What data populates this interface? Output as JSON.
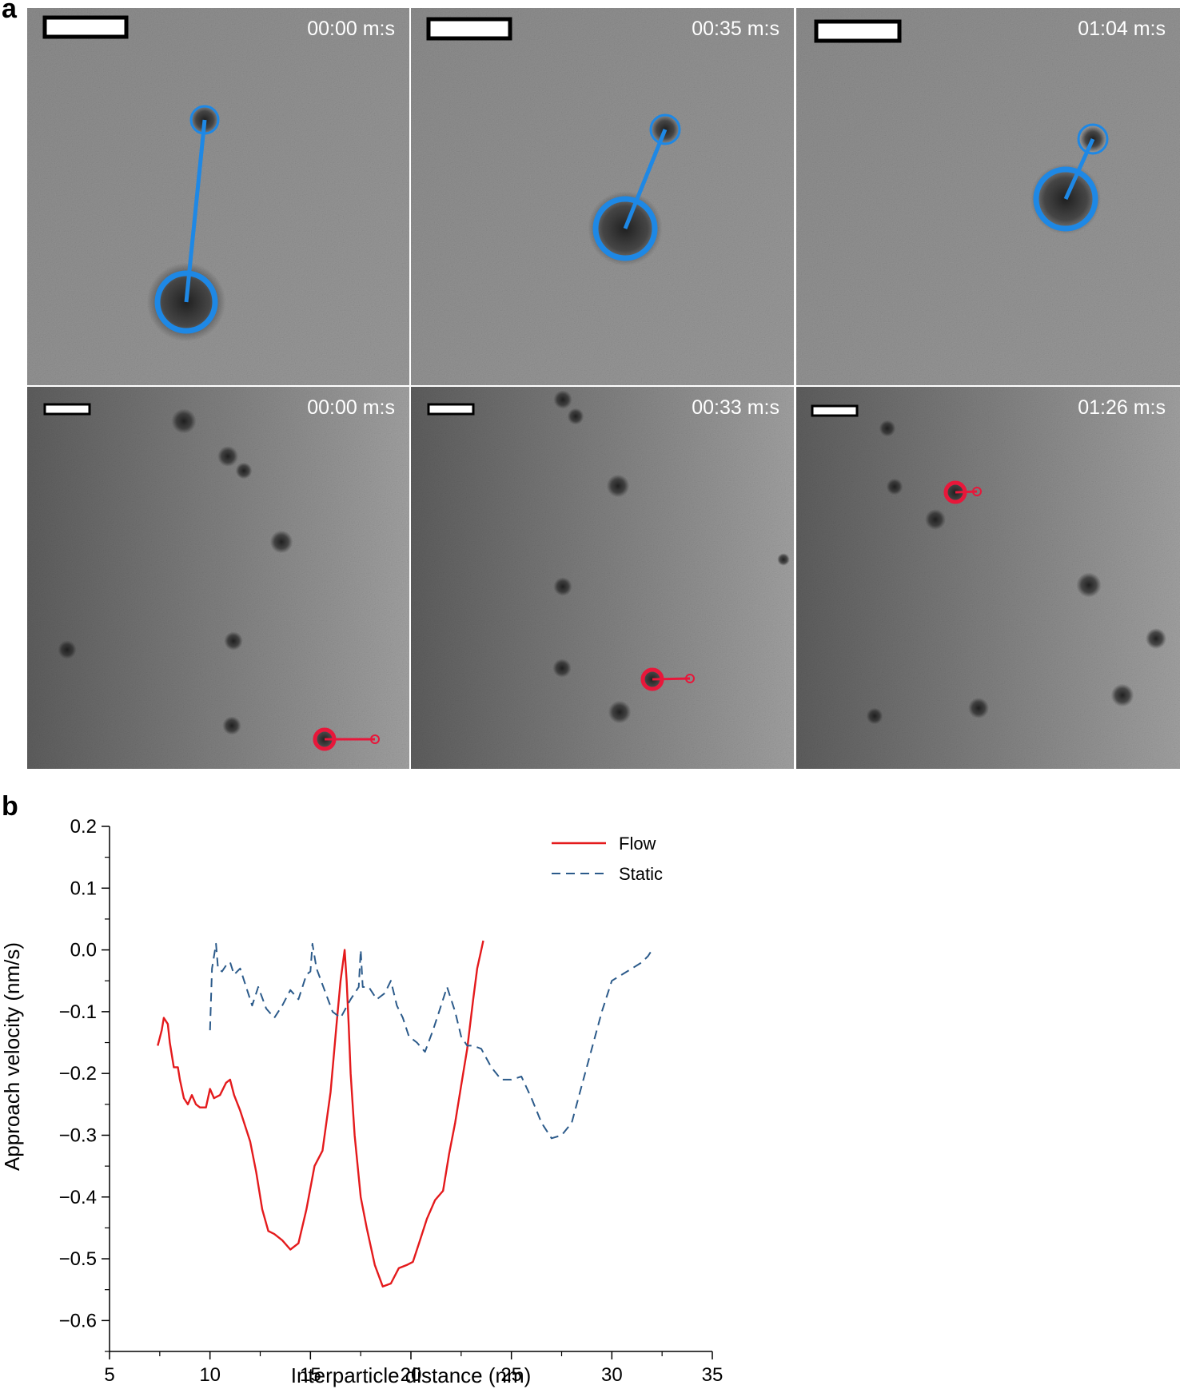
{
  "panel_a": {
    "label": "a",
    "top_row": [
      {
        "time": "00:00 m:s",
        "tracks": [
          {
            "big": [
              233,
              378
            ],
            "small": [
              256,
              150
            ]
          }
        ]
      },
      {
        "time": "00:35 m:s",
        "tracks": [
          {
            "big": [
              782,
              286
            ],
            "small": [
              832,
              162
            ]
          }
        ]
      },
      {
        "time": "01:04 m:s",
        "tracks": [
          {
            "big": [
              1333,
              249
            ],
            "small": [
              1367,
              174
            ]
          }
        ]
      }
    ],
    "bottom_row": [
      {
        "time": "00:00 m:s",
        "tracks": [
          {
            "big": [
              406,
              925
            ],
            "small": [
              469,
              925
            ]
          }
        ]
      },
      {
        "time": "00:33 m:s",
        "tracks": [
          {
            "big": [
              816,
              850
            ],
            "small": [
              863,
              849
            ]
          }
        ]
      },
      {
        "time": "01:26 m:s",
        "tracks": [
          {
            "big": [
              1195,
              616
            ],
            "small": [
              1222,
              615
            ]
          }
        ]
      }
    ]
  },
  "panel_b": {
    "label": "b"
  },
  "colors": {
    "flow": "#e41a1c",
    "static": "#2b5a8a",
    "blue_marker": "#1e88e5",
    "red_marker": "#e8173a"
  },
  "chart_data": {
    "type": "line",
    "xlabel": "Interparticle distance (nm)",
    "ylabel": "Approach velocity (nm/s)",
    "xlim": [
      5,
      35
    ],
    "ylim": [
      -0.65,
      0.2
    ],
    "xticks": [
      5,
      10,
      15,
      20,
      25,
      30,
      35
    ],
    "yticks": [
      0.2,
      0.1,
      0.0,
      -0.1,
      -0.2,
      -0.3,
      -0.4,
      -0.5,
      -0.6
    ],
    "xtick_labels": [
      "5",
      "10",
      "15",
      "20",
      "25",
      "30",
      "35"
    ],
    "ytick_labels": [
      "0.2",
      "0.1",
      "0.0",
      "−0.1",
      "−0.2",
      "−0.3",
      "−0.4",
      "−0.5",
      "−0.6"
    ],
    "legend_position": "top-right",
    "series": [
      {
        "name": "Flow",
        "style": "solid",
        "x": [
          7.4,
          7.6,
          7.7,
          7.9,
          8.0,
          8.2,
          8.4,
          8.5,
          8.7,
          8.9,
          9.1,
          9.3,
          9.5,
          9.8,
          10.0,
          10.2,
          10.5,
          10.8,
          11.0,
          11.2,
          11.5,
          11.8,
          12.0,
          12.3,
          12.6,
          12.9,
          13.2,
          13.6,
          14.0,
          14.4,
          14.8,
          15.2,
          15.6,
          16.0,
          16.3,
          16.5,
          16.7,
          16.8,
          16.9,
          17.0,
          17.2,
          17.5,
          17.8,
          18.2,
          18.6,
          19.0,
          19.4,
          19.8,
          20.1,
          20.4,
          20.8,
          21.2,
          21.6,
          21.9,
          22.2,
          22.5,
          22.8,
          23.1,
          23.3,
          23.5,
          23.6
        ],
        "y": [
          -0.155,
          -0.13,
          -0.11,
          -0.12,
          -0.15,
          -0.19,
          -0.19,
          -0.21,
          -0.24,
          -0.25,
          -0.235,
          -0.25,
          -0.255,
          -0.255,
          -0.225,
          -0.24,
          -0.235,
          -0.215,
          -0.21,
          -0.235,
          -0.26,
          -0.29,
          -0.31,
          -0.36,
          -0.42,
          -0.455,
          -0.46,
          -0.47,
          -0.485,
          -0.475,
          -0.42,
          -0.35,
          -0.325,
          -0.23,
          -0.12,
          -0.05,
          0.0,
          -0.05,
          -0.12,
          -0.2,
          -0.3,
          -0.4,
          -0.45,
          -0.51,
          -0.545,
          -0.54,
          -0.515,
          -0.51,
          -0.505,
          -0.475,
          -0.435,
          -0.405,
          -0.39,
          -0.33,
          -0.28,
          -0.22,
          -0.16,
          -0.08,
          -0.03,
          0.0,
          0.015
        ]
      },
      {
        "name": "Static",
        "style": "dashed",
        "x": [
          10.0,
          10.1,
          10.3,
          10.4,
          10.6,
          10.8,
          11.0,
          11.2,
          11.5,
          11.8,
          12.1,
          12.4,
          12.8,
          13.2,
          13.6,
          14.0,
          14.4,
          14.8,
          15.0,
          15.1,
          15.3,
          15.7,
          16.1,
          16.5,
          17.0,
          17.4,
          17.5,
          17.6,
          17.9,
          18.3,
          18.7,
          19.0,
          19.3,
          19.6,
          19.9,
          20.3,
          20.7,
          21.1,
          21.4,
          21.8,
          22.2,
          22.5,
          22.8,
          23.1,
          23.5,
          24.0,
          24.5,
          25.0,
          25.5,
          26.0,
          26.5,
          27.0,
          27.5,
          28.0,
          28.5,
          29.0,
          29.5,
          30.0,
          30.5,
          31.0,
          31.5,
          31.8,
          32.0,
          32.1
        ],
        "y": [
          -0.13,
          -0.03,
          0.01,
          -0.03,
          -0.035,
          -0.025,
          -0.02,
          -0.04,
          -0.03,
          -0.06,
          -0.09,
          -0.06,
          -0.095,
          -0.11,
          -0.09,
          -0.065,
          -0.08,
          -0.04,
          -0.035,
          0.01,
          -0.03,
          -0.065,
          -0.1,
          -0.11,
          -0.08,
          -0.06,
          0.0,
          -0.06,
          -0.06,
          -0.08,
          -0.07,
          -0.05,
          -0.09,
          -0.11,
          -0.14,
          -0.15,
          -0.165,
          -0.13,
          -0.1,
          -0.06,
          -0.1,
          -0.14,
          -0.155,
          -0.155,
          -0.16,
          -0.19,
          -0.21,
          -0.21,
          -0.205,
          -0.24,
          -0.28,
          -0.305,
          -0.3,
          -0.28,
          -0.22,
          -0.16,
          -0.1,
          -0.05,
          -0.04,
          -0.03,
          -0.02,
          -0.01,
          0.0,
          0.0
        ]
      }
    ]
  }
}
